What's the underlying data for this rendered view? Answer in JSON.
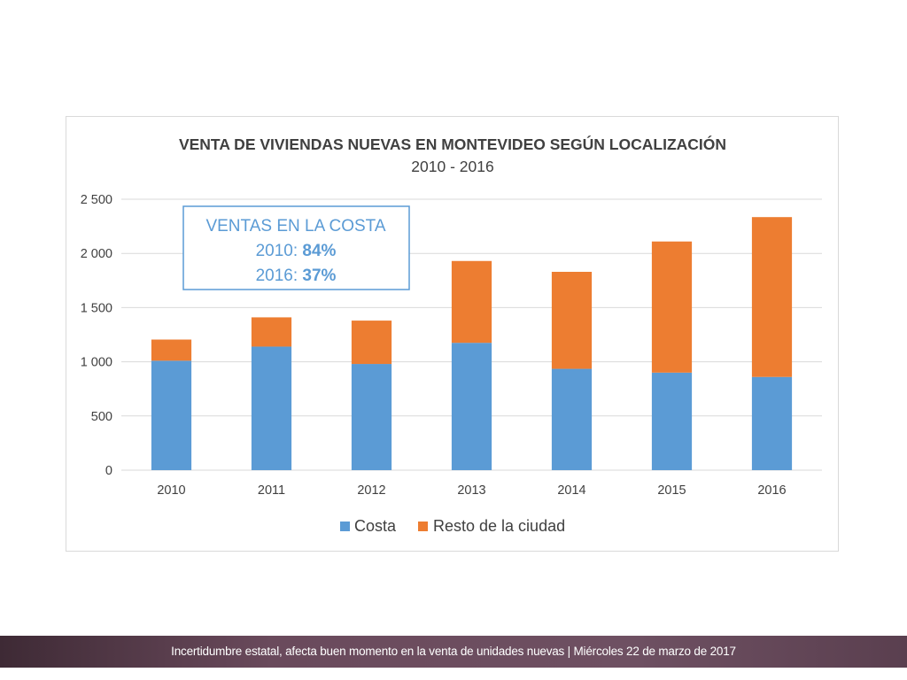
{
  "chart_data": {
    "type": "bar",
    "stacked": true,
    "title": "VENTA DE VIVIENDAS NUEVAS EN MONTEVIDEO SEGÚN LOCALIZACIÓN",
    "subtitle": "2010 - 2016",
    "categories": [
      "2010",
      "2011",
      "2012",
      "2013",
      "2014",
      "2015",
      "2016"
    ],
    "series": [
      {
        "name": "Costa",
        "color": "#5b9bd5",
        "values": [
          1010,
          1140,
          980,
          1175,
          935,
          900,
          860
        ]
      },
      {
        "name": "Resto de la ciudad",
        "color": "#ed7d31",
        "values": [
          195,
          270,
          400,
          755,
          895,
          1210,
          1475
        ]
      }
    ],
    "ylim": [
      0,
      2500
    ],
    "yticks": [
      0,
      500,
      1000,
      1500,
      2000,
      2500
    ],
    "ytick_labels": [
      "0",
      "500",
      "1 000",
      "1 500",
      "2 000",
      "2 500"
    ],
    "grid": true,
    "legend_position": "bottom",
    "annotation": {
      "line1": "VENTAS EN LA COSTA",
      "line2_prefix": "2010: ",
      "line2_value": "84%",
      "line3_prefix": "2016: ",
      "line3_value": "37%"
    }
  },
  "footer": {
    "text": "Incertidumbre estatal, afecta buen momento en la venta de unidades nuevas | Miércoles 22 de marzo de 2017"
  }
}
